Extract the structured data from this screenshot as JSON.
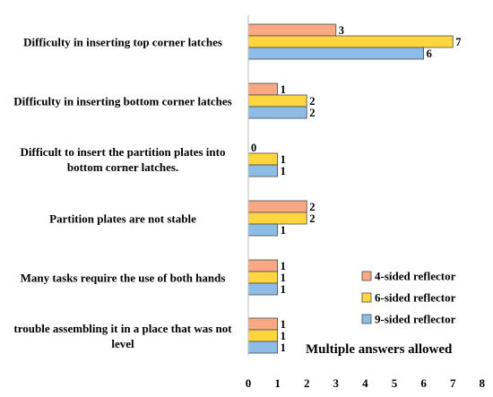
{
  "chart_data": {
    "type": "bar",
    "orientation": "horizontal",
    "categories": [
      "Difficulty in inserting top corner latches",
      "Difficulty in inserting bottom corner latches",
      "Difficult to insert the partition plates into bottom corner latches.",
      "Partition plates are not stable",
      "Many tasks require the use of both hands",
      "trouble assembling it in a place that was not level"
    ],
    "series": [
      {
        "name": "4-sided reflector",
        "color": "#F8A883",
        "values": [
          3,
          1,
          0,
          2,
          1,
          1
        ]
      },
      {
        "name": "6-sided reflector",
        "color": "#FFD640",
        "values": [
          7,
          2,
          1,
          2,
          1,
          1
        ]
      },
      {
        "name": "9-sided reflector",
        "color": "#8DBDE6",
        "values": [
          6,
          2,
          1,
          1,
          1,
          1
        ]
      }
    ],
    "xlim": [
      0,
      8
    ],
    "xticks": [
      0,
      1,
      2,
      3,
      4,
      5,
      6,
      7,
      8
    ],
    "annotation": "Multiple answers allowed",
    "legend_position": "bottom-right",
    "grid": false
  }
}
